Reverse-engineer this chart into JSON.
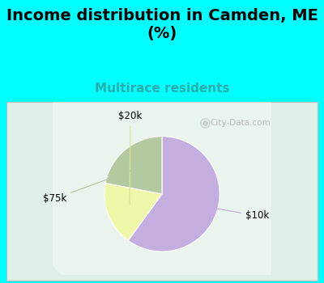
{
  "title": "Income distribution in Camden, ME\n(%)",
  "subtitle": "Multirace residents",
  "title_fontsize": 14,
  "subtitle_fontsize": 11,
  "subtitle_color": "#2aadad",
  "background_color": "#00ffff",
  "chart_bg_color": "#e0f0e8",
  "slices": [
    {
      "label": "$10k",
      "value": 60,
      "color": "#c4aee0"
    },
    {
      "label": "$20k",
      "value": 18,
      "color": "#eff8a8"
    },
    {
      "label": "$75k",
      "value": 22,
      "color": "#b5c9a0"
    }
  ],
  "startangle": 90,
  "watermark": "City-Data.com"
}
